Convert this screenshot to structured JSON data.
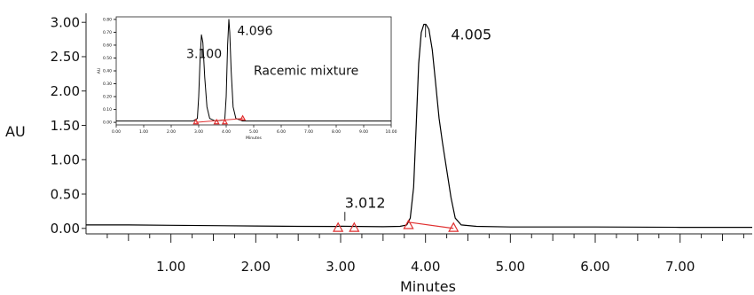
{
  "chart_data": [
    {
      "type": "line",
      "title": "",
      "xlabel": "Minutes",
      "ylabel": "AU",
      "xlim": [
        0,
        7.85
      ],
      "ylim": [
        -0.08,
        3.08
      ],
      "x_ticks": [
        1.0,
        2.0,
        3.0,
        4.0,
        5.0,
        6.0,
        7.0
      ],
      "x_tick_labels": [
        "1.00",
        "2.00",
        "3.00",
        "4.00",
        "5.00",
        "6.00",
        "7.00"
      ],
      "y_ticks": [
        0.0,
        0.5,
        1.0,
        1.5,
        2.0,
        2.5,
        3.0
      ],
      "y_tick_labels": [
        "0.00",
        "0.50",
        "1.00",
        "1.50",
        "2.00",
        "2.50",
        "3.00"
      ],
      "grid": false,
      "series": [
        {
          "color": "#000000",
          "points": [
            [
              0,
              0.05
            ],
            [
              0.5,
              0.05
            ],
            [
              1.0,
              0.045
            ],
            [
              1.5,
              0.04
            ],
            [
              2.0,
              0.035
            ],
            [
              2.5,
              0.03
            ],
            [
              2.95,
              0.028
            ],
            [
              3.012,
              0.032
            ],
            [
              3.1,
              0.03
            ],
            [
              3.5,
              0.025
            ],
            [
              3.7,
              0.03
            ],
            [
              3.78,
              0.05
            ],
            [
              3.82,
              0.15
            ],
            [
              3.86,
              0.6
            ],
            [
              3.89,
              1.5
            ],
            [
              3.92,
              2.4
            ],
            [
              3.95,
              2.85
            ],
            [
              3.98,
              2.97
            ],
            [
              4.005,
              2.97
            ],
            [
              4.04,
              2.9
            ],
            [
              4.08,
              2.6
            ],
            [
              4.12,
              2.1
            ],
            [
              4.16,
              1.6
            ],
            [
              4.2,
              1.25
            ],
            [
              4.25,
              0.85
            ],
            [
              4.3,
              0.45
            ],
            [
              4.35,
              0.15
            ],
            [
              4.42,
              0.05
            ],
            [
              4.6,
              0.03
            ],
            [
              5.0,
              0.02
            ],
            [
              6.0,
              0.02
            ],
            [
              7.0,
              0.015
            ],
            [
              7.85,
              0.015
            ]
          ]
        }
      ],
      "peak_labels": [
        {
          "text": "3.012",
          "x": 3.05,
          "y": 0.3
        },
        {
          "text": "4.005",
          "x": 4.3,
          "y": 2.75
        }
      ],
      "baseline": {
        "color": "#e03030",
        "segment": [
          [
            3.8,
            0.09
          ],
          [
            4.33,
            0.0
          ]
        ],
        "markers": [
          [
            2.97,
            0.0
          ],
          [
            3.16,
            0.0
          ],
          [
            3.8,
            0.04
          ],
          [
            4.33,
            0.0
          ]
        ]
      }
    },
    {
      "type": "line",
      "title": "",
      "xlabel": "Minutes",
      "ylabel": "AU",
      "xlim": [
        0,
        10.0
      ],
      "ylim": [
        -0.02,
        0.82
      ],
      "x_ticks": [
        0,
        1,
        2,
        3,
        4,
        5,
        6,
        7,
        8,
        9,
        10
      ],
      "x_tick_labels": [
        "0.00",
        "1.00",
        "2.00",
        "3.00",
        "4.00",
        "5.00",
        "6.00",
        "7.00",
        "8.00",
        "9.00",
        "10.00"
      ],
      "y_ticks": [
        0,
        0.1,
        0.2,
        0.3,
        0.4,
        0.5,
        0.6,
        0.7,
        0.8
      ],
      "y_tick_labels": [
        "0.00",
        "0.10",
        "0.20",
        "0.30",
        "0.40",
        "0.50",
        "0.60",
        "0.70",
        "0.80"
      ],
      "series": [
        {
          "color": "#000000",
          "points": [
            [
              0,
              0.01
            ],
            [
              2.8,
              0.01
            ],
            [
              2.95,
              0.03
            ],
            [
              3.0,
              0.2
            ],
            [
              3.05,
              0.5
            ],
            [
              3.1,
              0.68
            ],
            [
              3.15,
              0.62
            ],
            [
              3.22,
              0.35
            ],
            [
              3.3,
              0.12
            ],
            [
              3.4,
              0.03
            ],
            [
              3.6,
              0.01
            ],
            [
              3.95,
              0.02
            ],
            [
              4.0,
              0.2
            ],
            [
              4.05,
              0.6
            ],
            [
              4.096,
              0.8
            ],
            [
              4.13,
              0.7
            ],
            [
              4.18,
              0.4
            ],
            [
              4.25,
              0.12
            ],
            [
              4.35,
              0.03
            ],
            [
              4.6,
              0.01
            ],
            [
              10.0,
              0.01
            ]
          ]
        }
      ],
      "peak_labels": [
        {
          "text": "3.100",
          "x": 2.55,
          "y": 0.5
        },
        {
          "text": "4.096",
          "x": 4.4,
          "y": 0.68
        },
        {
          "text": "Racemic mixture",
          "x": 5.0,
          "y": 0.37
        }
      ],
      "baseline": {
        "color": "#e03030",
        "segment": [
          [
            2.9,
            0.0
          ],
          [
            4.6,
            0.03
          ]
        ],
        "markers": [
          [
            2.9,
            0.0
          ],
          [
            3.65,
            0.0
          ],
          [
            3.95,
            0.0
          ],
          [
            4.6,
            0.03
          ]
        ]
      }
    }
  ]
}
